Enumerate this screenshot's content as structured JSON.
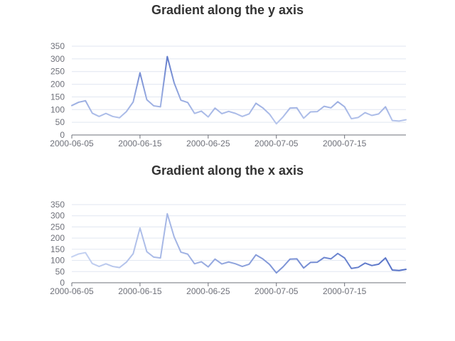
{
  "chart_data": [
    {
      "type": "line",
      "title": "Gradient along the y axis",
      "gradient": "y",
      "colors": {
        "low": "#c6d3f2",
        "high": "#5470c6"
      },
      "ylim": [
        0,
        350
      ],
      "yticks": [
        0,
        50,
        100,
        150,
        200,
        250,
        300,
        350
      ],
      "xticks": [
        "2000-06-05",
        "2000-06-15",
        "2000-06-25",
        "2000-07-05",
        "2000-07-15"
      ],
      "grid": true,
      "x": [
        "2000-06-05",
        "2000-06-06",
        "2000-06-07",
        "2000-06-08",
        "2000-06-09",
        "2000-06-10",
        "2000-06-11",
        "2000-06-12",
        "2000-06-13",
        "2000-06-14",
        "2000-06-15",
        "2000-06-16",
        "2000-06-17",
        "2000-06-18",
        "2000-06-19",
        "2000-06-20",
        "2000-06-21",
        "2000-06-22",
        "2000-06-23",
        "2000-06-24",
        "2000-06-25",
        "2000-06-26",
        "2000-06-27",
        "2000-06-28",
        "2000-06-29",
        "2000-06-30",
        "2000-07-01",
        "2000-07-02",
        "2000-07-03",
        "2000-07-04",
        "2000-07-05",
        "2000-07-06",
        "2000-07-07",
        "2000-07-08",
        "2000-07-09",
        "2000-07-10",
        "2000-07-11",
        "2000-07-12",
        "2000-07-13",
        "2000-07-14",
        "2000-07-15",
        "2000-07-16",
        "2000-07-17",
        "2000-07-18",
        "2000-07-19",
        "2000-07-20",
        "2000-07-21",
        "2000-07-22",
        "2000-07-23",
        "2000-07-24"
      ],
      "values": [
        116,
        129,
        135,
        86,
        73,
        85,
        73,
        68,
        92,
        130,
        245,
        139,
        115,
        111,
        309,
        206,
        137,
        128,
        85,
        94,
        71,
        106,
        84,
        93,
        85,
        73,
        83,
        125,
        107,
        82,
        44,
        72,
        106,
        107,
        66,
        91,
        92,
        113,
        107,
        131,
        111,
        64,
        69,
        88,
        77,
        83,
        111,
        57,
        55,
        60
      ]
    },
    {
      "type": "line",
      "title": "Gradient along the x axis",
      "gradient": "x",
      "colors": {
        "low": "#c6d3f2",
        "high": "#5470c6"
      },
      "ylim": [
        0,
        350
      ],
      "yticks": [
        0,
        50,
        100,
        150,
        200,
        250,
        300,
        350
      ],
      "xticks": [
        "2000-06-05",
        "2000-06-15",
        "2000-06-25",
        "2000-07-05",
        "2000-07-15"
      ],
      "grid": true,
      "x": [
        "2000-06-05",
        "2000-06-06",
        "2000-06-07",
        "2000-06-08",
        "2000-06-09",
        "2000-06-10",
        "2000-06-11",
        "2000-06-12",
        "2000-06-13",
        "2000-06-14",
        "2000-06-15",
        "2000-06-16",
        "2000-06-17",
        "2000-06-18",
        "2000-06-19",
        "2000-06-20",
        "2000-06-21",
        "2000-06-22",
        "2000-06-23",
        "2000-06-24",
        "2000-06-25",
        "2000-06-26",
        "2000-06-27",
        "2000-06-28",
        "2000-06-29",
        "2000-06-30",
        "2000-07-01",
        "2000-07-02",
        "2000-07-03",
        "2000-07-04",
        "2000-07-05",
        "2000-07-06",
        "2000-07-07",
        "2000-07-08",
        "2000-07-09",
        "2000-07-10",
        "2000-07-11",
        "2000-07-12",
        "2000-07-13",
        "2000-07-14",
        "2000-07-15",
        "2000-07-16",
        "2000-07-17",
        "2000-07-18",
        "2000-07-19",
        "2000-07-20",
        "2000-07-21",
        "2000-07-22",
        "2000-07-23",
        "2000-07-24"
      ],
      "values": [
        116,
        129,
        135,
        86,
        73,
        85,
        73,
        68,
        92,
        130,
        245,
        139,
        115,
        111,
        309,
        206,
        137,
        128,
        85,
        94,
        71,
        106,
        84,
        93,
        85,
        73,
        83,
        125,
        107,
        82,
        44,
        72,
        106,
        107,
        66,
        91,
        92,
        113,
        107,
        131,
        111,
        64,
        69,
        88,
        77,
        83,
        111,
        57,
        55,
        60
      ]
    }
  ]
}
